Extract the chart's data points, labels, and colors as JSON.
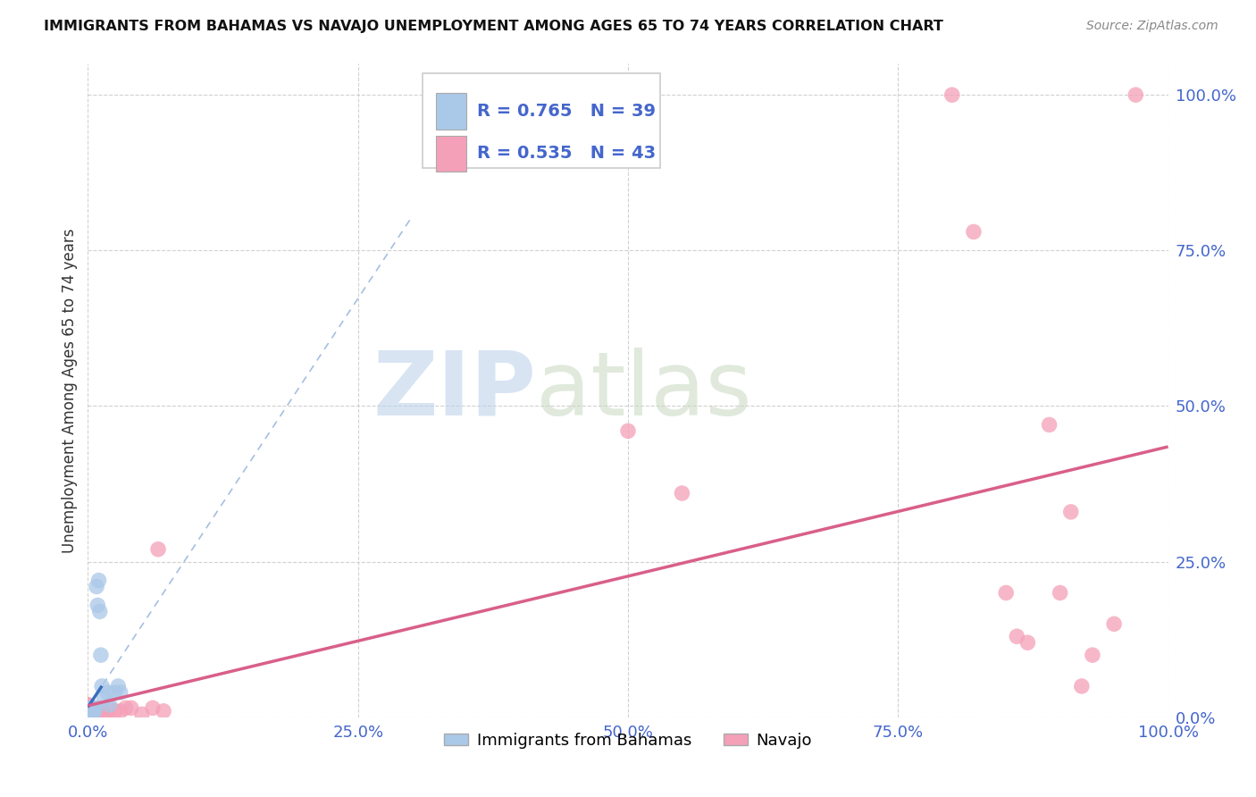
{
  "title": "IMMIGRANTS FROM BAHAMAS VS NAVAJO UNEMPLOYMENT AMONG AGES 65 TO 74 YEARS CORRELATION CHART",
  "source": "Source: ZipAtlas.com",
  "ylabel": "Unemployment Among Ages 65 to 74 years",
  "legend_label1": "Immigrants from Bahamas",
  "legend_label2": "Navajo",
  "R1": 0.765,
  "N1": 39,
  "R2": 0.535,
  "N2": 43,
  "blue_color": "#aac8e8",
  "pink_color": "#f4a0b8",
  "blue_line_color": "#3a6fbf",
  "pink_line_color": "#d95f8a",
  "blue_scatter": [
    [
      0.0,
      0.0
    ],
    [
      0.0,
      0.0
    ],
    [
      0.0,
      0.0
    ],
    [
      0.0,
      0.0
    ],
    [
      0.0,
      0.0
    ],
    [
      0.0,
      0.0
    ],
    [
      0.0,
      0.0
    ],
    [
      0.0,
      0.0
    ],
    [
      0.0,
      0.0
    ],
    [
      0.0,
      0.0
    ],
    [
      0.0,
      0.0
    ],
    [
      0.0,
      0.0
    ],
    [
      0.0,
      0.0
    ],
    [
      0.0,
      0.005
    ],
    [
      0.0,
      0.005
    ],
    [
      0.002,
      0.005
    ],
    [
      0.002,
      0.01
    ],
    [
      0.002,
      0.01
    ],
    [
      0.003,
      0.005
    ],
    [
      0.003,
      0.01
    ],
    [
      0.003,
      0.015
    ],
    [
      0.004,
      0.005
    ],
    [
      0.004,
      0.01
    ],
    [
      0.005,
      0.01
    ],
    [
      0.005,
      0.015
    ],
    [
      0.006,
      0.01
    ],
    [
      0.007,
      0.015
    ],
    [
      0.008,
      0.21
    ],
    [
      0.009,
      0.18
    ],
    [
      0.01,
      0.22
    ],
    [
      0.011,
      0.17
    ],
    [
      0.012,
      0.1
    ],
    [
      0.013,
      0.05
    ],
    [
      0.015,
      0.03
    ],
    [
      0.018,
      0.04
    ],
    [
      0.02,
      0.02
    ],
    [
      0.025,
      0.04
    ],
    [
      0.028,
      0.05
    ],
    [
      0.03,
      0.04
    ]
  ],
  "pink_scatter": [
    [
      0.0,
      0.0
    ],
    [
      0.0,
      0.005
    ],
    [
      0.0,
      0.005
    ],
    [
      0.0,
      0.01
    ],
    [
      0.0,
      0.01
    ],
    [
      0.0,
      0.02
    ],
    [
      0.0,
      0.02
    ],
    [
      0.002,
      0.0
    ],
    [
      0.002,
      0.005
    ],
    [
      0.002,
      0.01
    ],
    [
      0.003,
      0.005
    ],
    [
      0.003,
      0.01
    ],
    [
      0.004,
      0.005
    ],
    [
      0.004,
      0.01
    ],
    [
      0.006,
      0.01
    ],
    [
      0.008,
      0.005
    ],
    [
      0.01,
      0.01
    ],
    [
      0.012,
      0.015
    ],
    [
      0.015,
      0.005
    ],
    [
      0.018,
      0.005
    ],
    [
      0.02,
      0.015
    ],
    [
      0.025,
      0.01
    ],
    [
      0.03,
      0.01
    ],
    [
      0.035,
      0.015
    ],
    [
      0.04,
      0.015
    ],
    [
      0.05,
      0.005
    ],
    [
      0.06,
      0.015
    ],
    [
      0.065,
      0.27
    ],
    [
      0.07,
      0.01
    ],
    [
      0.5,
      0.46
    ],
    [
      0.55,
      0.36
    ],
    [
      0.8,
      1.0
    ],
    [
      0.82,
      0.78
    ],
    [
      0.85,
      0.2
    ],
    [
      0.86,
      0.13
    ],
    [
      0.87,
      0.12
    ],
    [
      0.89,
      0.47
    ],
    [
      0.9,
      0.2
    ],
    [
      0.91,
      0.33
    ],
    [
      0.92,
      0.05
    ],
    [
      0.93,
      0.1
    ],
    [
      0.95,
      0.15
    ],
    [
      0.97,
      1.0
    ]
  ],
  "xlim": [
    0,
    1.0
  ],
  "ylim": [
    0,
    1.05
  ],
  "xtick_vals": [
    0,
    0.25,
    0.5,
    0.75,
    1.0
  ],
  "ytick_vals": [
    0,
    0.25,
    0.5,
    0.75,
    1.0
  ],
  "xtick_labels": [
    "0.0%",
    "25.0%",
    "50.0%",
    "75.0%",
    "100.0%"
  ],
  "ytick_labels": [
    "0.0%",
    "25.0%",
    "50.0%",
    "75.0%",
    "100.0%"
  ],
  "watermark_zip": "ZIP",
  "watermark_atlas": "atlas",
  "bg_color": "#ffffff",
  "grid_color": "#cccccc",
  "tick_color": "#4466cc"
}
